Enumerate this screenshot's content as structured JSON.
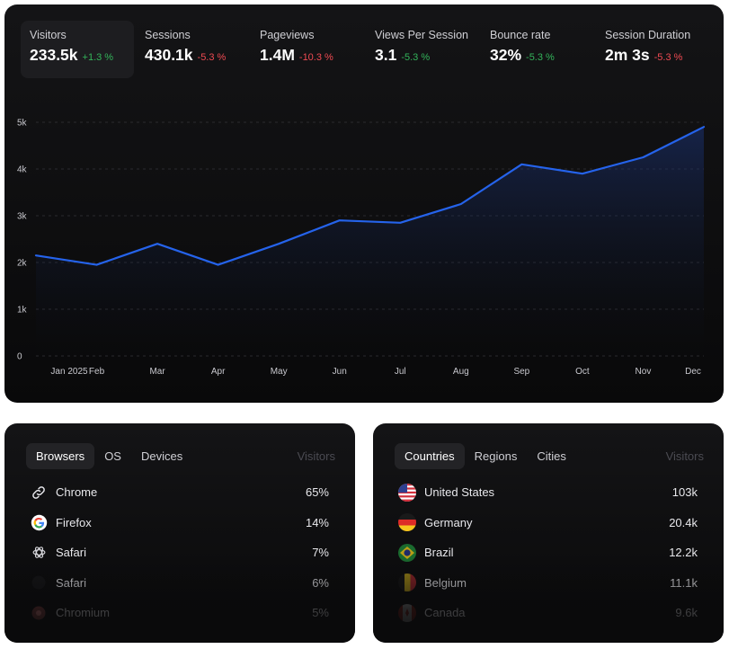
{
  "metrics": [
    {
      "label": "Visitors",
      "value": "233.5k",
      "change": "+1.3 %",
      "trend": "up",
      "active": true
    },
    {
      "label": "Sessions",
      "value": "430.1k",
      "change": "-5.3 %",
      "trend": "down",
      "active": false
    },
    {
      "label": "Pageviews",
      "value": "1.4M",
      "change": "-10.3 %",
      "trend": "down",
      "active": false
    },
    {
      "label": "Views Per Session",
      "value": "3.1",
      "change": "-5.3 %",
      "trend": "up",
      "active": false
    },
    {
      "label": "Bounce rate",
      "value": "32%",
      "change": "-5.3 %",
      "trend": "up",
      "active": false
    },
    {
      "label": "Session Duration",
      "value": "2m 3s",
      "change": "-5.3 %",
      "trend": "down",
      "active": false
    }
  ],
  "chart_data": {
    "type": "area",
    "categories": [
      "Jan 2025",
      "Feb",
      "Mar",
      "Apr",
      "May",
      "Jun",
      "Jul",
      "Aug",
      "Sep",
      "Oct",
      "Nov",
      "Dec"
    ],
    "series": [
      {
        "values": [
          2150,
          1950,
          2400,
          1950,
          2400,
          2900,
          2850,
          3250,
          4100,
          3900,
          4250,
          4900
        ]
      }
    ],
    "y_ticks": [
      "0",
      "1k",
      "2k",
      "3k",
      "4k",
      "5k"
    ],
    "ylim": [
      0,
      5000
    ],
    "grid": "horizontal-dashed",
    "line_color": "#2563eb",
    "title": "",
    "xlabel": "",
    "ylabel": ""
  },
  "browsers": {
    "tabs": [
      {
        "label": "Browsers",
        "active": true
      },
      {
        "label": "OS",
        "active": false
      },
      {
        "label": "Devices",
        "active": false
      }
    ],
    "column_header": "Visitors",
    "rows": [
      {
        "icon": "link-icon",
        "name": "Chrome",
        "value": "65%"
      },
      {
        "icon": "google-icon",
        "name": "Firefox",
        "value": "14%"
      },
      {
        "icon": "openai-icon",
        "name": "Safari",
        "value": "7%"
      },
      {
        "icon": "blank-icon",
        "name": "Safari",
        "value": "6%"
      },
      {
        "icon": "chromium-icon",
        "name": "Chromium",
        "value": "5%"
      }
    ]
  },
  "countries": {
    "tabs": [
      {
        "label": "Countries",
        "active": true
      },
      {
        "label": "Regions",
        "active": false
      },
      {
        "label": "Cities",
        "active": false
      }
    ],
    "column_header": "Visitors",
    "rows": [
      {
        "icon": "flag-us-icon",
        "name": "United States",
        "value": "103k"
      },
      {
        "icon": "flag-de-icon",
        "name": "Germany",
        "value": "20.4k"
      },
      {
        "icon": "flag-br-icon",
        "name": "Brazil",
        "value": "12.2k"
      },
      {
        "icon": "flag-be-icon",
        "name": "Belgium",
        "value": "11.1k"
      },
      {
        "icon": "flag-ca-icon",
        "name": "Canada",
        "value": "9.6k"
      }
    ]
  }
}
